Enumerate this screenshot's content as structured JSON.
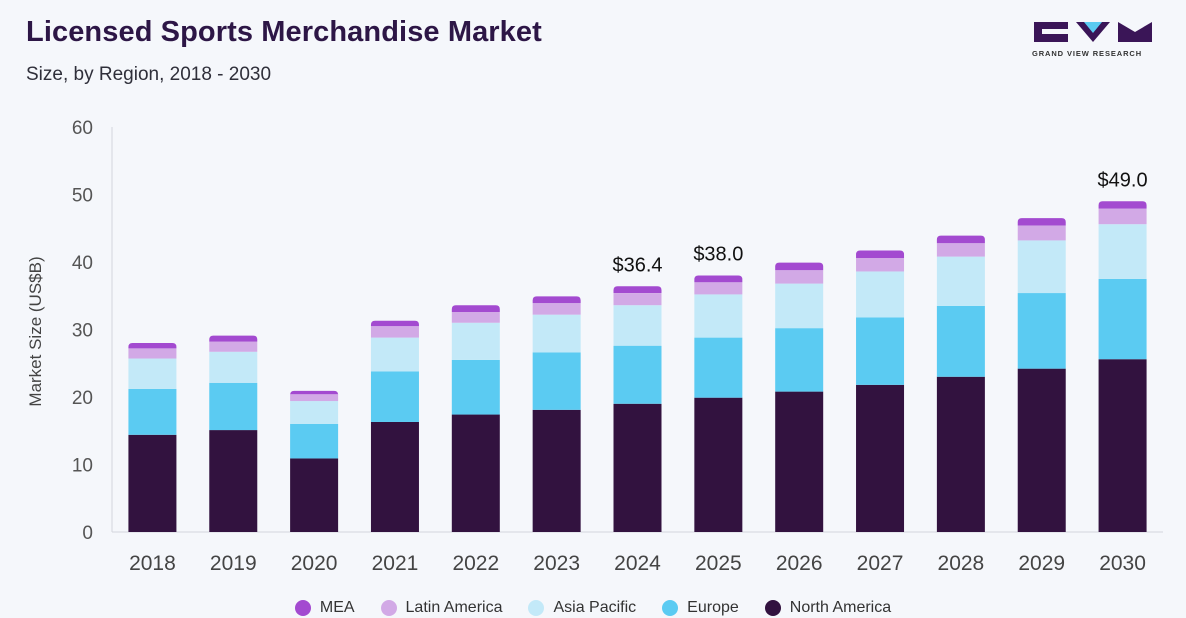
{
  "header": {
    "title": "Licensed Sports Merchandise Market",
    "subtitle": "Size, by Region, 2018 - 2030",
    "logo_text": "GRAND VIEW RESEARCH"
  },
  "chart_data": {
    "type": "bar",
    "stacked": true,
    "categories": [
      "2018",
      "2019",
      "2020",
      "2021",
      "2022",
      "2023",
      "2024",
      "2025",
      "2026",
      "2027",
      "2028",
      "2029",
      "2030"
    ],
    "series": [
      {
        "name": "North America",
        "color": "#32123f",
        "values": [
          14.4,
          15.1,
          10.9,
          16.3,
          17.4,
          18.1,
          19.0,
          19.9,
          20.8,
          21.8,
          23.0,
          24.2,
          25.6
        ]
      },
      {
        "name": "Europe",
        "color": "#5bcbf2",
        "values": [
          6.8,
          7.0,
          5.1,
          7.5,
          8.1,
          8.5,
          8.6,
          8.9,
          9.4,
          10.0,
          10.5,
          11.2,
          11.9
        ]
      },
      {
        "name": "Asia Pacific",
        "color": "#c3e9f8",
        "values": [
          4.5,
          4.6,
          3.4,
          5.0,
          5.5,
          5.6,
          6.0,
          6.4,
          6.6,
          6.8,
          7.3,
          7.8,
          8.1
        ]
      },
      {
        "name": "Latin America",
        "color": "#d2a9e6",
        "values": [
          1.5,
          1.5,
          1.0,
          1.7,
          1.6,
          1.7,
          1.8,
          1.8,
          2.0,
          2.0,
          2.0,
          2.2,
          2.3
        ]
      },
      {
        "name": "MEA",
        "color": "#a34ad0",
        "values": [
          0.8,
          0.9,
          0.5,
          0.8,
          1.0,
          1.0,
          1.0,
          1.0,
          1.1,
          1.1,
          1.1,
          1.1,
          1.1
        ]
      }
    ],
    "legend_order": [
      "MEA",
      "Latin America",
      "Asia Pacific",
      "Europe",
      "North America"
    ],
    "data_labels": [
      {
        "category": "2024",
        "text": "$36.4"
      },
      {
        "category": "2025",
        "text": "$38.0"
      },
      {
        "category": "2030",
        "text": "$49.0"
      }
    ],
    "ylabel": "Market Size (US$B)",
    "xlabel": "",
    "ylim": [
      0,
      60
    ],
    "yticks": [
      0,
      10,
      20,
      30,
      40,
      50,
      60
    ],
    "grid": false,
    "legend_position": "bottom"
  }
}
